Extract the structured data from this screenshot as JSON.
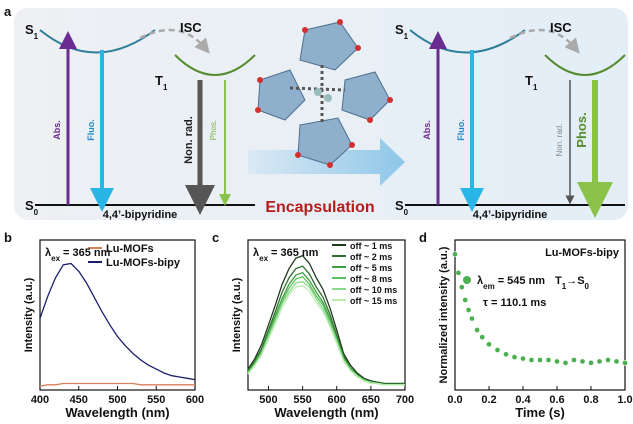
{
  "diagram": {
    "panel_label": "a",
    "left": {
      "s1": "S",
      "s1_sub": "1",
      "t1": "T",
      "t1_sub": "1",
      "s0": "S",
      "s0_sub": "0",
      "isc": "ISC",
      "abs": "Abs.",
      "fluo": "Fluo.",
      "nonrad": "Non. rad.",
      "phos": "Phos.",
      "molecule": "4,4’-bipyridine"
    },
    "right": {
      "s1": "S",
      "s1_sub": "1",
      "t1": "T",
      "t1_sub": "1",
      "s0": "S",
      "s0_sub": "0",
      "isc": "ISC",
      "abs": "Abs.",
      "fluo": "Fluo.",
      "nonrad": "Non. rad.",
      "phos": "Phos.",
      "molecule": "4,4’-bipyridine"
    },
    "process": "Encapsulation"
  },
  "chart_data": [
    {
      "type": "line",
      "panel_label": "b",
      "xlabel": "Wavelength (nm)",
      "ylabel": "Intensity (a.u.)",
      "annotation": {
        "symbol": "λ",
        "sub": "ex",
        "text": "= 365 nm"
      },
      "xlim": [
        400,
        600
      ],
      "ylim": [
        0,
        1.15
      ],
      "xticks": [
        400,
        450,
        500,
        550,
        600
      ],
      "legend": "upper right",
      "x": [
        400,
        410,
        420,
        430,
        440,
        450,
        460,
        470,
        480,
        490,
        500,
        510,
        520,
        530,
        540,
        550,
        560,
        570,
        580,
        590,
        600
      ],
      "series": [
        {
          "name": "Lu-MOFs",
          "color": "#d9805a",
          "values": [
            0.03,
            0.04,
            0.04,
            0.05,
            0.05,
            0.05,
            0.05,
            0.05,
            0.05,
            0.05,
            0.05,
            0.05,
            0.05,
            0.04,
            0.04,
            0.04,
            0.04,
            0.04,
            0.04,
            0.04,
            0.04
          ]
        },
        {
          "name": "Lu-MOFs-bipy",
          "color": "#1b1f6b",
          "values": [
            0.55,
            0.72,
            0.86,
            0.96,
            0.97,
            0.91,
            0.82,
            0.71,
            0.6,
            0.5,
            0.41,
            0.34,
            0.28,
            0.23,
            0.19,
            0.16,
            0.13,
            0.11,
            0.1,
            0.09,
            0.08
          ]
        }
      ]
    },
    {
      "type": "line",
      "panel_label": "c",
      "xlabel": "Wavelength (nm)",
      "ylabel": "Intensity (a.u.)",
      "annotation": {
        "symbol": "λ",
        "sub": "ex",
        "text": "= 365 nm"
      },
      "xlim": [
        470,
        700
      ],
      "ylim": [
        0,
        1.15
      ],
      "xticks": [
        500,
        550,
        600,
        650,
        700
      ],
      "legend": "upper right",
      "x": [
        470,
        480,
        490,
        500,
        510,
        520,
        530,
        540,
        550,
        560,
        570,
        580,
        590,
        600,
        610,
        620,
        630,
        640,
        650,
        660,
        670,
        680,
        690,
        700
      ],
      "series": [
        {
          "name": "off ~ 1 ms",
          "color": "#1e3a1e",
          "values": [
            0.16,
            0.24,
            0.35,
            0.5,
            0.65,
            0.81,
            0.93,
            1.01,
            1.03,
            0.97,
            0.86,
            0.77,
            0.63,
            0.46,
            0.28,
            0.19,
            0.13,
            0.09,
            0.07,
            0.06,
            0.05,
            0.05,
            0.05,
            0.05
          ]
        },
        {
          "name": "off ~ 2 ms",
          "color": "#2f6e2f",
          "values": [
            0.15,
            0.22,
            0.32,
            0.46,
            0.6,
            0.75,
            0.86,
            0.93,
            0.95,
            0.89,
            0.79,
            0.71,
            0.58,
            0.42,
            0.26,
            0.17,
            0.12,
            0.08,
            0.06,
            0.06,
            0.05,
            0.05,
            0.05,
            0.05
          ]
        },
        {
          "name": "off ~ 5 ms",
          "color": "#3f9e3f",
          "values": [
            0.14,
            0.21,
            0.3,
            0.44,
            0.57,
            0.7,
            0.81,
            0.88,
            0.9,
            0.84,
            0.75,
            0.67,
            0.55,
            0.4,
            0.24,
            0.17,
            0.11,
            0.08,
            0.06,
            0.05,
            0.04,
            0.04,
            0.04,
            0.04
          ]
        },
        {
          "name": "off ~ 8 ms",
          "color": "#5cc35c",
          "values": [
            0.13,
            0.2,
            0.29,
            0.42,
            0.55,
            0.68,
            0.78,
            0.85,
            0.87,
            0.81,
            0.72,
            0.65,
            0.53,
            0.39,
            0.24,
            0.16,
            0.11,
            0.08,
            0.06,
            0.05,
            0.04,
            0.04,
            0.04,
            0.04
          ]
        },
        {
          "name": "off ~ 10 ms",
          "color": "#8ad98a",
          "values": [
            0.13,
            0.19,
            0.28,
            0.41,
            0.53,
            0.66,
            0.75,
            0.82,
            0.83,
            0.79,
            0.7,
            0.62,
            0.51,
            0.37,
            0.23,
            0.15,
            0.11,
            0.07,
            0.06,
            0.05,
            0.04,
            0.04,
            0.04,
            0.04
          ]
        },
        {
          "name": "off ~ 15 ms",
          "color": "#bdecb3",
          "values": [
            0.12,
            0.19,
            0.27,
            0.39,
            0.51,
            0.63,
            0.73,
            0.79,
            0.8,
            0.76,
            0.67,
            0.6,
            0.49,
            0.36,
            0.22,
            0.15,
            0.1,
            0.07,
            0.05,
            0.05,
            0.04,
            0.04,
            0.04,
            0.04
          ]
        }
      ]
    },
    {
      "type": "scatter",
      "panel_label": "d",
      "xlabel": "Time (s)",
      "ylabel": "Normalized intensity (a.u.)",
      "sample": "Lu-MOFs-bipy",
      "annotation": {
        "symbol": "λ",
        "sub": "em",
        "text": "= 545 nm"
      },
      "transition": {
        "a": "T",
        "a_sub": "1",
        "b": "→S",
        "b_sub": "0"
      },
      "lifetime": "τ = 110.1 ms",
      "xlim": [
        0,
        1
      ],
      "ylim": [
        0,
        1.05
      ],
      "xticks": [
        {
          "value": 0,
          "label": "0.0"
        },
        {
          "value": 0.2,
          "label": "0.2"
        },
        {
          "value": 0.4,
          "label": "0.4"
        },
        {
          "value": 0.6,
          "label": "0.6"
        },
        {
          "value": 0.8,
          "label": "0.8"
        },
        {
          "value": 1,
          "label": "1.0"
        }
      ],
      "x": [
        0,
        0.02,
        0.04,
        0.06,
        0.08,
        0.1,
        0.13,
        0.16,
        0.2,
        0.25,
        0.3,
        0.35,
        0.4,
        0.45,
        0.5,
        0.55,
        0.6,
        0.65,
        0.7,
        0.75,
        0.8,
        0.85,
        0.9,
        0.95,
        1
      ],
      "series": [
        {
          "color": "#4caf50",
          "values": [
            0.95,
            0.82,
            0.72,
            0.63,
            0.56,
            0.5,
            0.42,
            0.37,
            0.32,
            0.28,
            0.25,
            0.23,
            0.22,
            0.21,
            0.21,
            0.21,
            0.2,
            0.19,
            0.21,
            0.2,
            0.19,
            0.2,
            0.21,
            0.2,
            0.19
          ]
        }
      ]
    }
  ]
}
